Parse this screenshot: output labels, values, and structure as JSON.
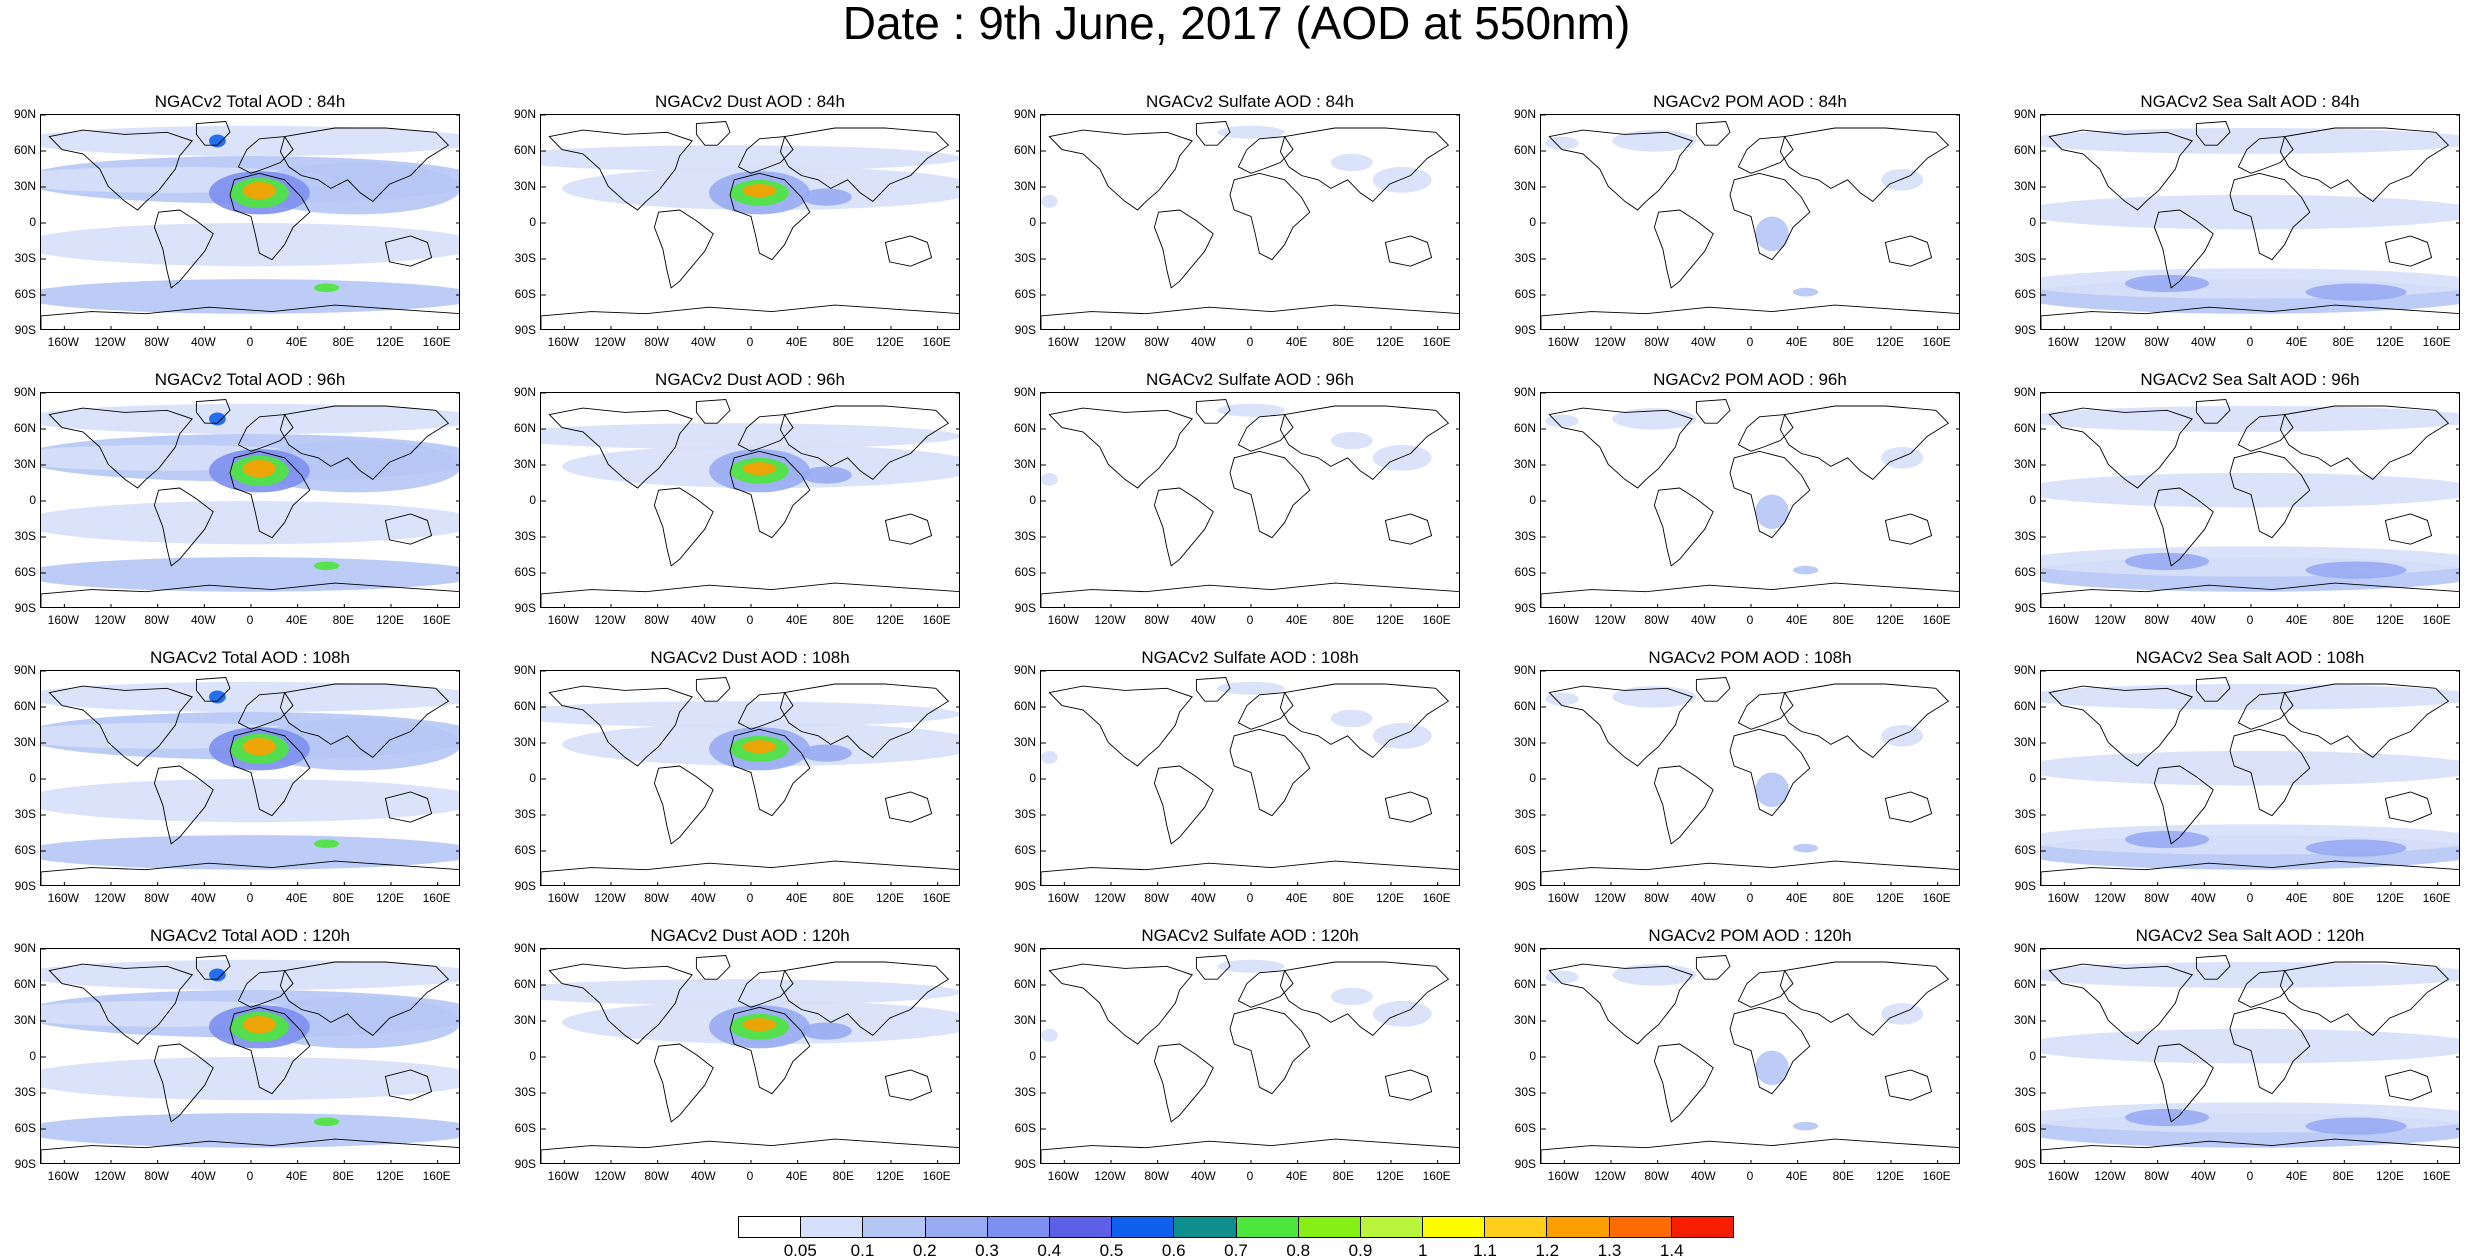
{
  "title": "Date : 9th June, 2017 (AOD at 550nm)",
  "lat_ticks": [
    "90N",
    "60N",
    "30N",
    "0",
    "30S",
    "60S",
    "90S"
  ],
  "lon_ticks": [
    "160W",
    "120W",
    "80W",
    "40W",
    "0",
    "40E",
    "80E",
    "120E",
    "160E"
  ],
  "colorbar": {
    "colors": [
      "#ffffff",
      "#d6e0fa",
      "#b5c6f5",
      "#98abf2",
      "#7d8ff0",
      "#5d5fe6",
      "#1060ee",
      "#0e8e8c",
      "#4de63c",
      "#86ef16",
      "#b8f53c",
      "#fefe00",
      "#fece1e",
      "#fd9e00",
      "#fb6b00",
      "#f81e00"
    ],
    "labels": [
      "0.05",
      "0.1",
      "0.2",
      "0.3",
      "0.4",
      "0.5",
      "0.6",
      "0.7",
      "0.8",
      "0.9",
      "1",
      "1.1",
      "1.2",
      "1.3",
      "1.4"
    ]
  },
  "panels": [
    {
      "title": "NGACv2 Total AOD : 84h",
      "species": "total"
    },
    {
      "title": "NGACv2 Dust AOD : 84h",
      "species": "dust"
    },
    {
      "title": "NGACv2 Sulfate AOD : 84h",
      "species": "sulfate"
    },
    {
      "title": "NGACv2 POM AOD : 84h",
      "species": "pom"
    },
    {
      "title": "NGACv2 Sea Salt AOD : 84h",
      "species": "seasalt"
    },
    {
      "title": "NGACv2 Total AOD : 96h",
      "species": "total"
    },
    {
      "title": "NGACv2 Dust AOD : 96h",
      "species": "dust"
    },
    {
      "title": "NGACv2 Sulfate AOD : 96h",
      "species": "sulfate"
    },
    {
      "title": "NGACv2 POM AOD : 96h",
      "species": "pom"
    },
    {
      "title": "NGACv2 Sea Salt AOD : 96h",
      "species": "seasalt"
    },
    {
      "title": "NGACv2 Total AOD : 108h",
      "species": "total"
    },
    {
      "title": "NGACv2 Dust AOD : 108h",
      "species": "dust"
    },
    {
      "title": "NGACv2 Sulfate AOD : 108h",
      "species": "sulfate"
    },
    {
      "title": "NGACv2 POM AOD : 108h",
      "species": "pom"
    },
    {
      "title": "NGACv2 Sea Salt AOD : 108h",
      "species": "seasalt"
    },
    {
      "title": "NGACv2 Total AOD : 120h",
      "species": "total"
    },
    {
      "title": "NGACv2 Dust AOD : 120h",
      "species": "dust"
    },
    {
      "title": "NGACv2 Sulfate AOD : 120h",
      "species": "sulfate"
    },
    {
      "title": "NGACv2 POM AOD : 120h",
      "species": "pom"
    },
    {
      "title": "NGACv2 Sea Salt  AOD : 120h",
      "species": "seasalt"
    }
  ]
}
